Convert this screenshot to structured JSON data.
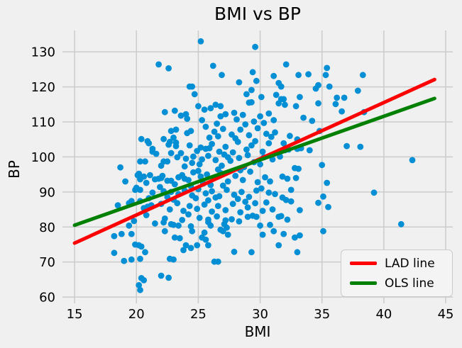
{
  "colors": {
    "background": "#f0f0f0",
    "grid": "#cbcbcb",
    "scatter": "#008fd5",
    "lad_line": "#ff0000",
    "ols_line": "#008000",
    "text": "#000000",
    "legend_bg": "#f4f4f4",
    "legend_border": "#cbcbcb"
  },
  "chart_data": {
    "type": "scatter",
    "title": "BMI vs BP",
    "xlabel": "BMI",
    "ylabel": "BP",
    "xlim": [
      14.02,
      45.57
    ],
    "ylim": [
      58.2,
      136.1
    ],
    "xticks": [
      15,
      20,
      25,
      30,
      35,
      40,
      45
    ],
    "yticks": [
      60,
      70,
      80,
      90,
      100,
      110,
      120,
      130
    ],
    "grid": true,
    "legend_position": "lower right",
    "lines": [
      {
        "name": "LAD line",
        "color": "#ff0000",
        "x": [
          15,
          44.1
        ],
        "y": [
          75.4,
          122.1
        ]
      },
      {
        "name": "OLS line",
        "color": "#008000",
        "x": [
          15,
          44.1
        ],
        "y": [
          80.5,
          116.7
        ]
      }
    ],
    "points": [
      [
        25.2,
        133
      ],
      [
        29.6,
        131.4
      ],
      [
        21.8,
        126.4
      ],
      [
        22.6,
        125.3
      ],
      [
        26.2,
        126
      ],
      [
        32.1,
        126.4
      ],
      [
        35.4,
        125.4
      ],
      [
        35.3,
        123.4
      ],
      [
        26.9,
        123.4
      ],
      [
        29.4,
        124.2
      ],
      [
        31.1,
        123.1
      ],
      [
        33.1,
        123.4
      ],
      [
        33.9,
        123.6
      ],
      [
        38.3,
        123.4
      ],
      [
        28.3,
        121.3
      ],
      [
        29.7,
        121.7
      ],
      [
        31.5,
        121.1
      ],
      [
        31.7,
        120.1
      ],
      [
        24.3,
        120.1
      ],
      [
        24.5,
        120.1
      ],
      [
        34.5,
        119.5
      ],
      [
        35.6,
        120.1
      ],
      [
        34.7,
        120.5
      ],
      [
        29.3,
        119.1
      ],
      [
        37.9,
        118.9
      ],
      [
        24.7,
        117.9
      ],
      [
        30.1,
        117.1
      ],
      [
        33.2,
        117.1
      ],
      [
        31.3,
        117.7
      ],
      [
        36.2,
        116.9
      ],
      [
        36.8,
        116.9
      ],
      [
        28.9,
        117.9
      ],
      [
        31.7,
        116.5
      ],
      [
        29.1,
        115.5
      ],
      [
        31.5,
        115.3
      ],
      [
        34.7,
        115.3
      ],
      [
        36.1,
        115.1
      ],
      [
        29.3,
        115.6
      ],
      [
        32,
        114.9
      ],
      [
        31.9,
        116.5
      ],
      [
        32.9,
        114.5
      ],
      [
        36.6,
        113
      ],
      [
        38.4,
        112.8
      ],
      [
        22.3,
        112.8
      ],
      [
        23.1,
        113.2
      ],
      [
        23.6,
        111.8
      ],
      [
        24,
        112.2
      ],
      [
        27.2,
        112.2
      ],
      [
        26.8,
        111.6
      ],
      [
        25,
        114.5
      ],
      [
        25.5,
        113.5
      ],
      [
        26,
        113.9
      ],
      [
        26.4,
        114.9
      ],
      [
        26.8,
        114.5
      ],
      [
        27.9,
        112.6
      ],
      [
        28.6,
        112
      ],
      [
        30,
        111.6
      ],
      [
        30.7,
        112.4
      ],
      [
        24.1,
        110.9
      ],
      [
        25.3,
        110.5
      ],
      [
        33.5,
        111.2
      ],
      [
        34.2,
        110.3
      ],
      [
        28.1,
        110.7
      ],
      [
        29.5,
        110.1
      ],
      [
        31.1,
        110.5
      ],
      [
        20.4,
        105.1
      ],
      [
        22.2,
        105.1
      ],
      [
        22.8,
        107.4
      ],
      [
        23.2,
        107.8
      ],
      [
        24.1,
        106.8
      ],
      [
        24.4,
        107.4
      ],
      [
        34.8,
        107.4
      ],
      [
        25.6,
        108.6
      ],
      [
        26.3,
        107.2
      ],
      [
        27,
        108
      ],
      [
        27.7,
        106.4
      ],
      [
        28.4,
        107.8
      ],
      [
        29.1,
        106.2
      ],
      [
        29.8,
        108.2
      ],
      [
        30.5,
        106.6
      ],
      [
        31.2,
        107
      ],
      [
        25.9,
        105.5
      ],
      [
        26.6,
        105.9
      ],
      [
        28,
        105.3
      ],
      [
        30.9,
        105.7
      ],
      [
        32.4,
        106
      ],
      [
        33,
        105
      ],
      [
        23,
        105.5
      ],
      [
        26.5,
        109.5
      ],
      [
        28.8,
        109.3
      ],
      [
        30.3,
        109.7
      ],
      [
        21,
        103.9
      ],
      [
        21.3,
        101.5
      ],
      [
        22.6,
        103.5
      ],
      [
        23.2,
        103.1
      ],
      [
        23.6,
        101.1
      ],
      [
        22.8,
        101.1
      ],
      [
        20.9,
        104.5
      ],
      [
        21.3,
        102.3
      ],
      [
        22.7,
        104.3
      ],
      [
        23.2,
        104.1
      ],
      [
        24.3,
        103.3
      ],
      [
        25.2,
        102.7
      ],
      [
        25.6,
        102.3
      ],
      [
        25.9,
        102.5
      ],
      [
        28.2,
        104.3
      ],
      [
        29.6,
        104.5
      ],
      [
        30.7,
        103.9
      ],
      [
        31.9,
        103.9
      ],
      [
        32,
        101.9
      ],
      [
        32.3,
        102.1
      ],
      [
        33,
        102.3
      ],
      [
        33.3,
        102.5
      ],
      [
        34,
        101.9
      ],
      [
        37,
        103.1
      ],
      [
        38.1,
        102.9
      ],
      [
        26.1,
        103.7
      ],
      [
        27.2,
        102.9
      ],
      [
        24.9,
        101.7
      ],
      [
        27.8,
        101.3
      ],
      [
        28.9,
        102.1
      ],
      [
        30.2,
        101.5
      ],
      [
        29.3,
        103.3
      ],
      [
        26.7,
        101.5
      ],
      [
        18.7,
        97
      ],
      [
        20.3,
        98.7
      ],
      [
        20.7,
        98.7
      ],
      [
        22.2,
        98.7
      ],
      [
        22.5,
        98.7
      ],
      [
        24,
        99.5
      ],
      [
        24.6,
        100.1
      ],
      [
        25.3,
        99.3
      ],
      [
        25.8,
        100.3
      ],
      [
        26.4,
        99.1
      ],
      [
        27.1,
        100.7
      ],
      [
        27.6,
        98.9
      ],
      [
        28.3,
        99.7
      ],
      [
        29,
        100.5
      ],
      [
        29.5,
        98.5
      ],
      [
        30.3,
        99.9
      ],
      [
        31,
        99.3
      ],
      [
        31.6,
        100.1
      ],
      [
        32.8,
        96.8
      ],
      [
        33.1,
        96.6
      ],
      [
        35,
        97.7
      ],
      [
        42.3,
        99.1
      ],
      [
        21.6,
        100.9
      ],
      [
        23.9,
        97.3
      ],
      [
        26.9,
        97.5
      ],
      [
        28.7,
        97.1
      ],
      [
        30,
        97.9
      ],
      [
        25.1,
        97.9
      ],
      [
        23.3,
        99.9
      ],
      [
        22,
        97.5
      ],
      [
        27.4,
        99.9
      ],
      [
        24.5,
        98.3
      ],
      [
        19.1,
        93
      ],
      [
        20.2,
        95.2
      ],
      [
        20.3,
        93.6
      ],
      [
        20.8,
        92.6
      ],
      [
        21.1,
        94.8
      ],
      [
        21.5,
        93.6
      ],
      [
        21.8,
        93.8
      ],
      [
        22,
        94
      ],
      [
        22.5,
        93.2
      ],
      [
        22.8,
        93.2
      ],
      [
        23.4,
        94.2
      ],
      [
        23.7,
        94.8
      ],
      [
        23.9,
        93.8
      ],
      [
        24.2,
        93.4
      ],
      [
        20.1,
        94.8
      ],
      [
        20.6,
        94.4
      ],
      [
        22.1,
        94.6
      ],
      [
        24.6,
        95.6
      ],
      [
        25.2,
        94.4
      ],
      [
        25.7,
        95
      ],
      [
        26.3,
        94
      ],
      [
        26.8,
        95.4
      ],
      [
        27.4,
        93
      ],
      [
        28,
        94.6
      ],
      [
        28.6,
        93.4
      ],
      [
        29.2,
        95.8
      ],
      [
        29.8,
        92.8
      ],
      [
        30.4,
        94.2
      ],
      [
        31.8,
        94.4
      ],
      [
        32.2,
        93.8
      ],
      [
        32.9,
        94
      ],
      [
        35.4,
        92.6
      ],
      [
        25.4,
        92.4
      ],
      [
        26,
        92
      ],
      [
        27,
        91.8
      ],
      [
        24.4,
        91.6
      ],
      [
        23.1,
        92.2
      ],
      [
        21.9,
        91.4
      ],
      [
        30.8,
        93
      ],
      [
        26.6,
        96.4
      ],
      [
        28.4,
        96.2
      ],
      [
        25,
        96
      ],
      [
        19.9,
        90.6
      ],
      [
        20,
        91.2
      ],
      [
        20.3,
        90.6
      ],
      [
        21.3,
        89.8
      ],
      [
        22.2,
        90.2
      ],
      [
        22.8,
        90
      ],
      [
        23.4,
        89.4
      ],
      [
        23.9,
        90.4
      ],
      [
        24.5,
        89
      ],
      [
        25,
        90.8
      ],
      [
        25.6,
        89.6
      ],
      [
        26.1,
        90.2
      ],
      [
        26.7,
        88.8
      ],
      [
        27.3,
        90.6
      ],
      [
        27.9,
        89.2
      ],
      [
        28.5,
        90
      ],
      [
        29.1,
        88.6
      ],
      [
        29.7,
        90.4
      ],
      [
        30.7,
        89.8
      ],
      [
        31.2,
        89.4
      ],
      [
        31.8,
        88.4
      ],
      [
        35.1,
        88.7
      ],
      [
        39.2,
        89.8
      ],
      [
        24.8,
        88.2
      ],
      [
        26.4,
        88.4
      ],
      [
        22.5,
        88.6
      ],
      [
        21,
        88.2
      ],
      [
        28.2,
        88
      ],
      [
        30.1,
        91
      ],
      [
        32.5,
        90.6
      ],
      [
        18.5,
        86.2
      ],
      [
        19.4,
        86.8
      ],
      [
        19.6,
        87.4
      ],
      [
        20.3,
        87.4
      ],
      [
        20.6,
        85.4
      ],
      [
        20.9,
        85.8
      ],
      [
        21.2,
        86.2
      ],
      [
        22,
        86.6
      ],
      [
        22.7,
        85
      ],
      [
        23.3,
        86.8
      ],
      [
        23.8,
        84.6
      ],
      [
        24.3,
        86
      ],
      [
        24.9,
        85.2
      ],
      [
        25.5,
        86.4
      ],
      [
        26.1,
        84.4
      ],
      [
        26.6,
        86
      ],
      [
        27.2,
        84.8
      ],
      [
        27.8,
        86.6
      ],
      [
        28.4,
        84.2
      ],
      [
        29,
        85.6
      ],
      [
        29.6,
        86.8
      ],
      [
        30.2,
        84.6
      ],
      [
        32.1,
        87.7
      ],
      [
        32.5,
        87.3
      ],
      [
        34.7,
        86.9
      ],
      [
        35.5,
        85.7
      ],
      [
        31,
        85
      ],
      [
        25.8,
        87.6
      ],
      [
        28.8,
        87.2
      ],
      [
        30.5,
        87
      ],
      [
        23,
        87.8
      ],
      [
        33.2,
        84.8
      ],
      [
        19.8,
        81.7
      ],
      [
        19.4,
        80.4
      ],
      [
        21.5,
        81
      ],
      [
        22.3,
        82.4
      ],
      [
        23,
        80.6
      ],
      [
        23.7,
        82
      ],
      [
        24.4,
        80.2
      ],
      [
        25.1,
        82.6
      ],
      [
        25.8,
        81.4
      ],
      [
        26.5,
        83
      ],
      [
        27.1,
        80.8
      ],
      [
        27.7,
        82.2
      ],
      [
        28.3,
        81.6
      ],
      [
        29.4,
        83.2
      ],
      [
        30,
        80.4
      ],
      [
        41.4,
        80.8
      ],
      [
        22.2,
        81.3
      ],
      [
        22.3,
        78.8
      ],
      [
        22.8,
        80.8
      ],
      [
        23.4,
        80.4
      ],
      [
        26,
        80.4
      ],
      [
        25.8,
        82.1
      ],
      [
        27.2,
        81.9
      ],
      [
        27.3,
        79.8
      ],
      [
        29,
        82.9
      ],
      [
        29.7,
        82.9
      ],
      [
        30.8,
        80.6
      ],
      [
        31.5,
        82.9
      ],
      [
        31.7,
        83.1
      ],
      [
        32.2,
        82.1
      ],
      [
        20.8,
        83.4
      ],
      [
        24.2,
        83.6
      ],
      [
        18.2,
        77.4
      ],
      [
        18.8,
        78
      ],
      [
        19.6,
        78
      ],
      [
        23.5,
        76.8
      ],
      [
        23.1,
        77
      ],
      [
        24,
        74.8
      ],
      [
        24.4,
        74
      ],
      [
        19.9,
        75
      ],
      [
        20.2,
        74.8
      ],
      [
        20.4,
        74.4
      ],
      [
        20.7,
        72.8
      ],
      [
        24.9,
        74.8
      ],
      [
        25.8,
        74.8
      ],
      [
        25.3,
        77
      ],
      [
        25.5,
        78.4
      ],
      [
        25.6,
        76.4
      ],
      [
        24.5,
        78.8
      ],
      [
        26.8,
        79.2
      ],
      [
        27,
        78.8
      ],
      [
        27.4,
        77.8
      ],
      [
        30.2,
        77.8
      ],
      [
        31.1,
        78.8
      ],
      [
        31.9,
        78
      ],
      [
        32.8,
        77
      ],
      [
        33.2,
        77.6
      ],
      [
        31.5,
        74.8
      ],
      [
        35.1,
        78.8
      ],
      [
        23.8,
        73.4
      ],
      [
        18.2,
        72.6
      ],
      [
        19,
        70.3
      ],
      [
        19.6,
        70.7
      ],
      [
        20.3,
        70.9
      ],
      [
        22.7,
        70.9
      ],
      [
        23,
        70.7
      ],
      [
        26.3,
        70.1
      ],
      [
        26.6,
        70.1
      ],
      [
        27.9,
        72.9
      ],
      [
        29.3,
        72.8
      ],
      [
        33,
        72.8
      ],
      [
        20.4,
        65.4
      ],
      [
        20.6,
        64.8
      ],
      [
        22,
        66.1
      ],
      [
        22.6,
        65.5
      ],
      [
        20.2,
        63.4
      ],
      [
        20.3,
        62
      ]
    ]
  }
}
